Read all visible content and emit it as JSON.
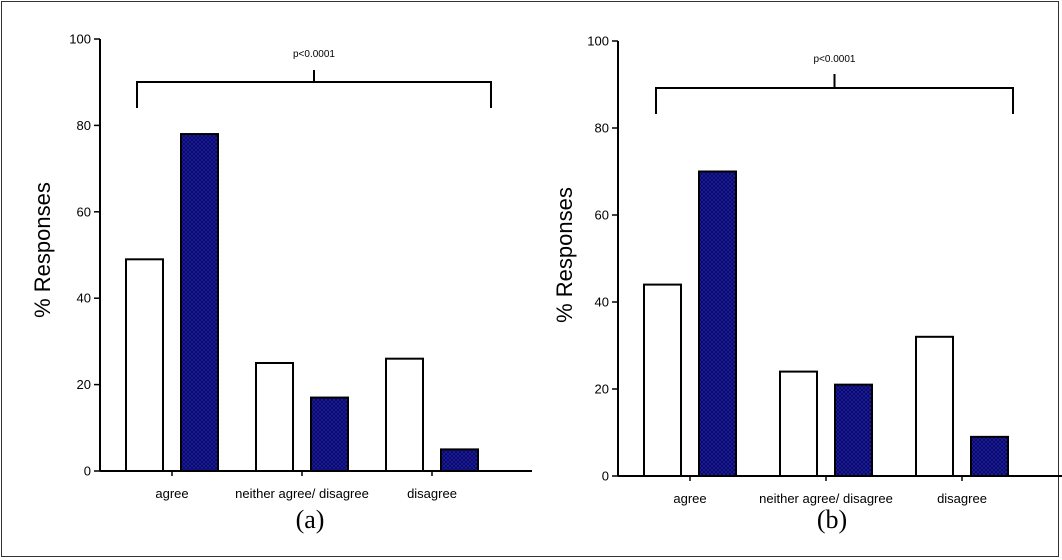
{
  "chart_data": [
    {
      "type": "bar",
      "panel": "(a)",
      "categories": [
        "agree",
        "neither agree/ disagree",
        "disagree"
      ],
      "series": [
        {
          "values": [
            49,
            25,
            26
          ],
          "fill": "#ffffff"
        },
        {
          "values": [
            78,
            17,
            5
          ],
          "fill": "#1c1c9a"
        }
      ],
      "ylabel": "% Responses",
      "ylim": [
        0,
        100
      ],
      "yticks": [
        0,
        20,
        40,
        60,
        80,
        100
      ],
      "annotation": "p<0.0001"
    },
    {
      "type": "bar",
      "panel": "(b)",
      "categories": [
        "agree",
        "neither agree/ disagree",
        "disagree"
      ],
      "series": [
        {
          "values": [
            44,
            24,
            32
          ],
          "fill": "#ffffff"
        },
        {
          "values": [
            70,
            21,
            9
          ],
          "fill": "#1c1c9a"
        }
      ],
      "ylabel": "% Responses",
      "ylim": [
        0,
        100
      ],
      "yticks": [
        0,
        20,
        40,
        60,
        80,
        100
      ],
      "annotation": "p<0.0001"
    }
  ]
}
